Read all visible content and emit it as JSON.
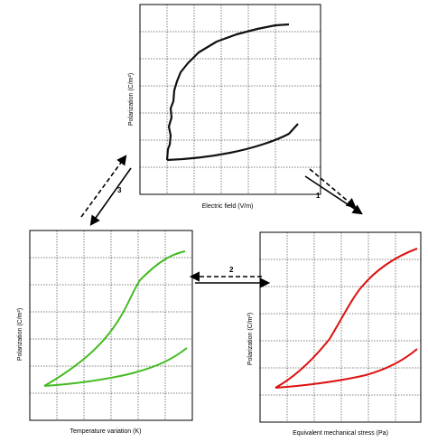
{
  "panels": {
    "top": {
      "xlabel": "Electric field (V/m)",
      "ylabel": "Polarization (C/m²)",
      "curve_color": "#000000"
    },
    "left": {
      "xlabel": "Temperature variation (K)",
      "ylabel": "Polarization (C/m²)",
      "curve_color": "#44bb22"
    },
    "right": {
      "xlabel": "Equivalent mechanical stress (Pa)",
      "ylabel": "Polarization (C/m²)",
      "curve_color": "#dd1111"
    }
  },
  "arrows": {
    "a1": {
      "label": "1"
    },
    "a2": {
      "label": "2"
    },
    "a3": {
      "label": "3"
    }
  }
}
